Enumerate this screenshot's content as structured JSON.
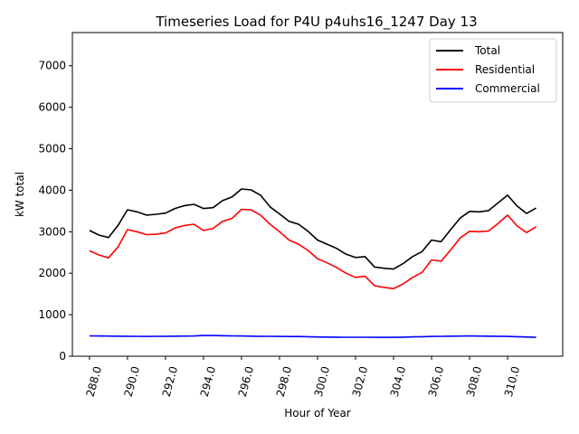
{
  "chart_data": {
    "type": "line",
    "title": "Timeseries Load for P4U p4uhs16_1247  Day 13",
    "xlabel": "Hour of Year",
    "ylabel": "kW total",
    "xlim": [
      287.1,
      312.9
    ],
    "ylim": [
      0,
      7800
    ],
    "xticks": [
      288,
      290,
      292,
      294,
      296,
      298,
      300,
      302,
      304,
      306,
      308,
      310
    ],
    "xtick_labels": [
      "288.0",
      "290.0",
      "292.0",
      "294.0",
      "296.0",
      "298.0",
      "300.0",
      "302.0",
      "304.0",
      "306.0",
      "308.0",
      "310.0"
    ],
    "yticks": [
      0,
      1000,
      2000,
      3000,
      4000,
      5000,
      6000,
      7000
    ],
    "ytick_labels": [
      "0",
      "1000",
      "2000",
      "3000",
      "4000",
      "5000",
      "6000",
      "7000"
    ],
    "grid": false,
    "legend_position": "top-right",
    "x": [
      288.0,
      288.5,
      289.0,
      289.5,
      290.0,
      290.5,
      291.0,
      291.5,
      292.0,
      292.5,
      293.0,
      293.5,
      294.0,
      294.5,
      295.0,
      295.5,
      296.0,
      296.5,
      297.0,
      297.5,
      298.0,
      298.5,
      299.0,
      299.5,
      300.0,
      300.5,
      301.0,
      301.5,
      302.0,
      302.5,
      303.0,
      303.5,
      304.0,
      304.5,
      305.0,
      305.5,
      306.0,
      306.5,
      307.0,
      307.5,
      308.0,
      308.5,
      309.0,
      309.5,
      310.0,
      310.5,
      311.0,
      311.5
    ],
    "series": [
      {
        "name": "Total",
        "color": "#000000",
        "values": [
          3030,
          2920,
          2860,
          3150,
          3530,
          3480,
          3400,
          3420,
          3450,
          3560,
          3630,
          3660,
          3560,
          3580,
          3750,
          3840,
          4030,
          4010,
          3880,
          3600,
          3430,
          3250,
          3180,
          3010,
          2800,
          2700,
          2600,
          2460,
          2380,
          2400,
          2150,
          2120,
          2100,
          2230,
          2400,
          2520,
          2800,
          2760,
          3050,
          3330,
          3490,
          3480,
          3510,
          3700,
          3880,
          3620,
          3440,
          3570
        ]
      },
      {
        "name": "Residential",
        "color": "#ff0000",
        "values": [
          2540,
          2440,
          2370,
          2630,
          3050,
          3000,
          2930,
          2940,
          2970,
          3090,
          3150,
          3180,
          3030,
          3080,
          3250,
          3320,
          3540,
          3530,
          3400,
          3180,
          3000,
          2800,
          2700,
          2550,
          2350,
          2250,
          2140,
          2000,
          1900,
          1930,
          1700,
          1660,
          1630,
          1740,
          1900,
          2020,
          2320,
          2290,
          2560,
          2850,
          3010,
          3000,
          3020,
          3200,
          3400,
          3140,
          2980,
          3120
        ]
      },
      {
        "name": "Commercial",
        "color": "#0000ff",
        "values": [
          490,
          488,
          486,
          484,
          482,
          480,
          478,
          480,
          482,
          484,
          486,
          488,
          500,
          498,
          494,
          490,
          488,
          484,
          482,
          480,
          478,
          476,
          474,
          470,
          465,
          462,
          460,
          458,
          457,
          458,
          456,
          456,
          455,
          460,
          466,
          470,
          478,
          480,
          484,
          486,
          488,
          486,
          484,
          482,
          478,
          470,
          465,
          455
        ]
      }
    ]
  }
}
